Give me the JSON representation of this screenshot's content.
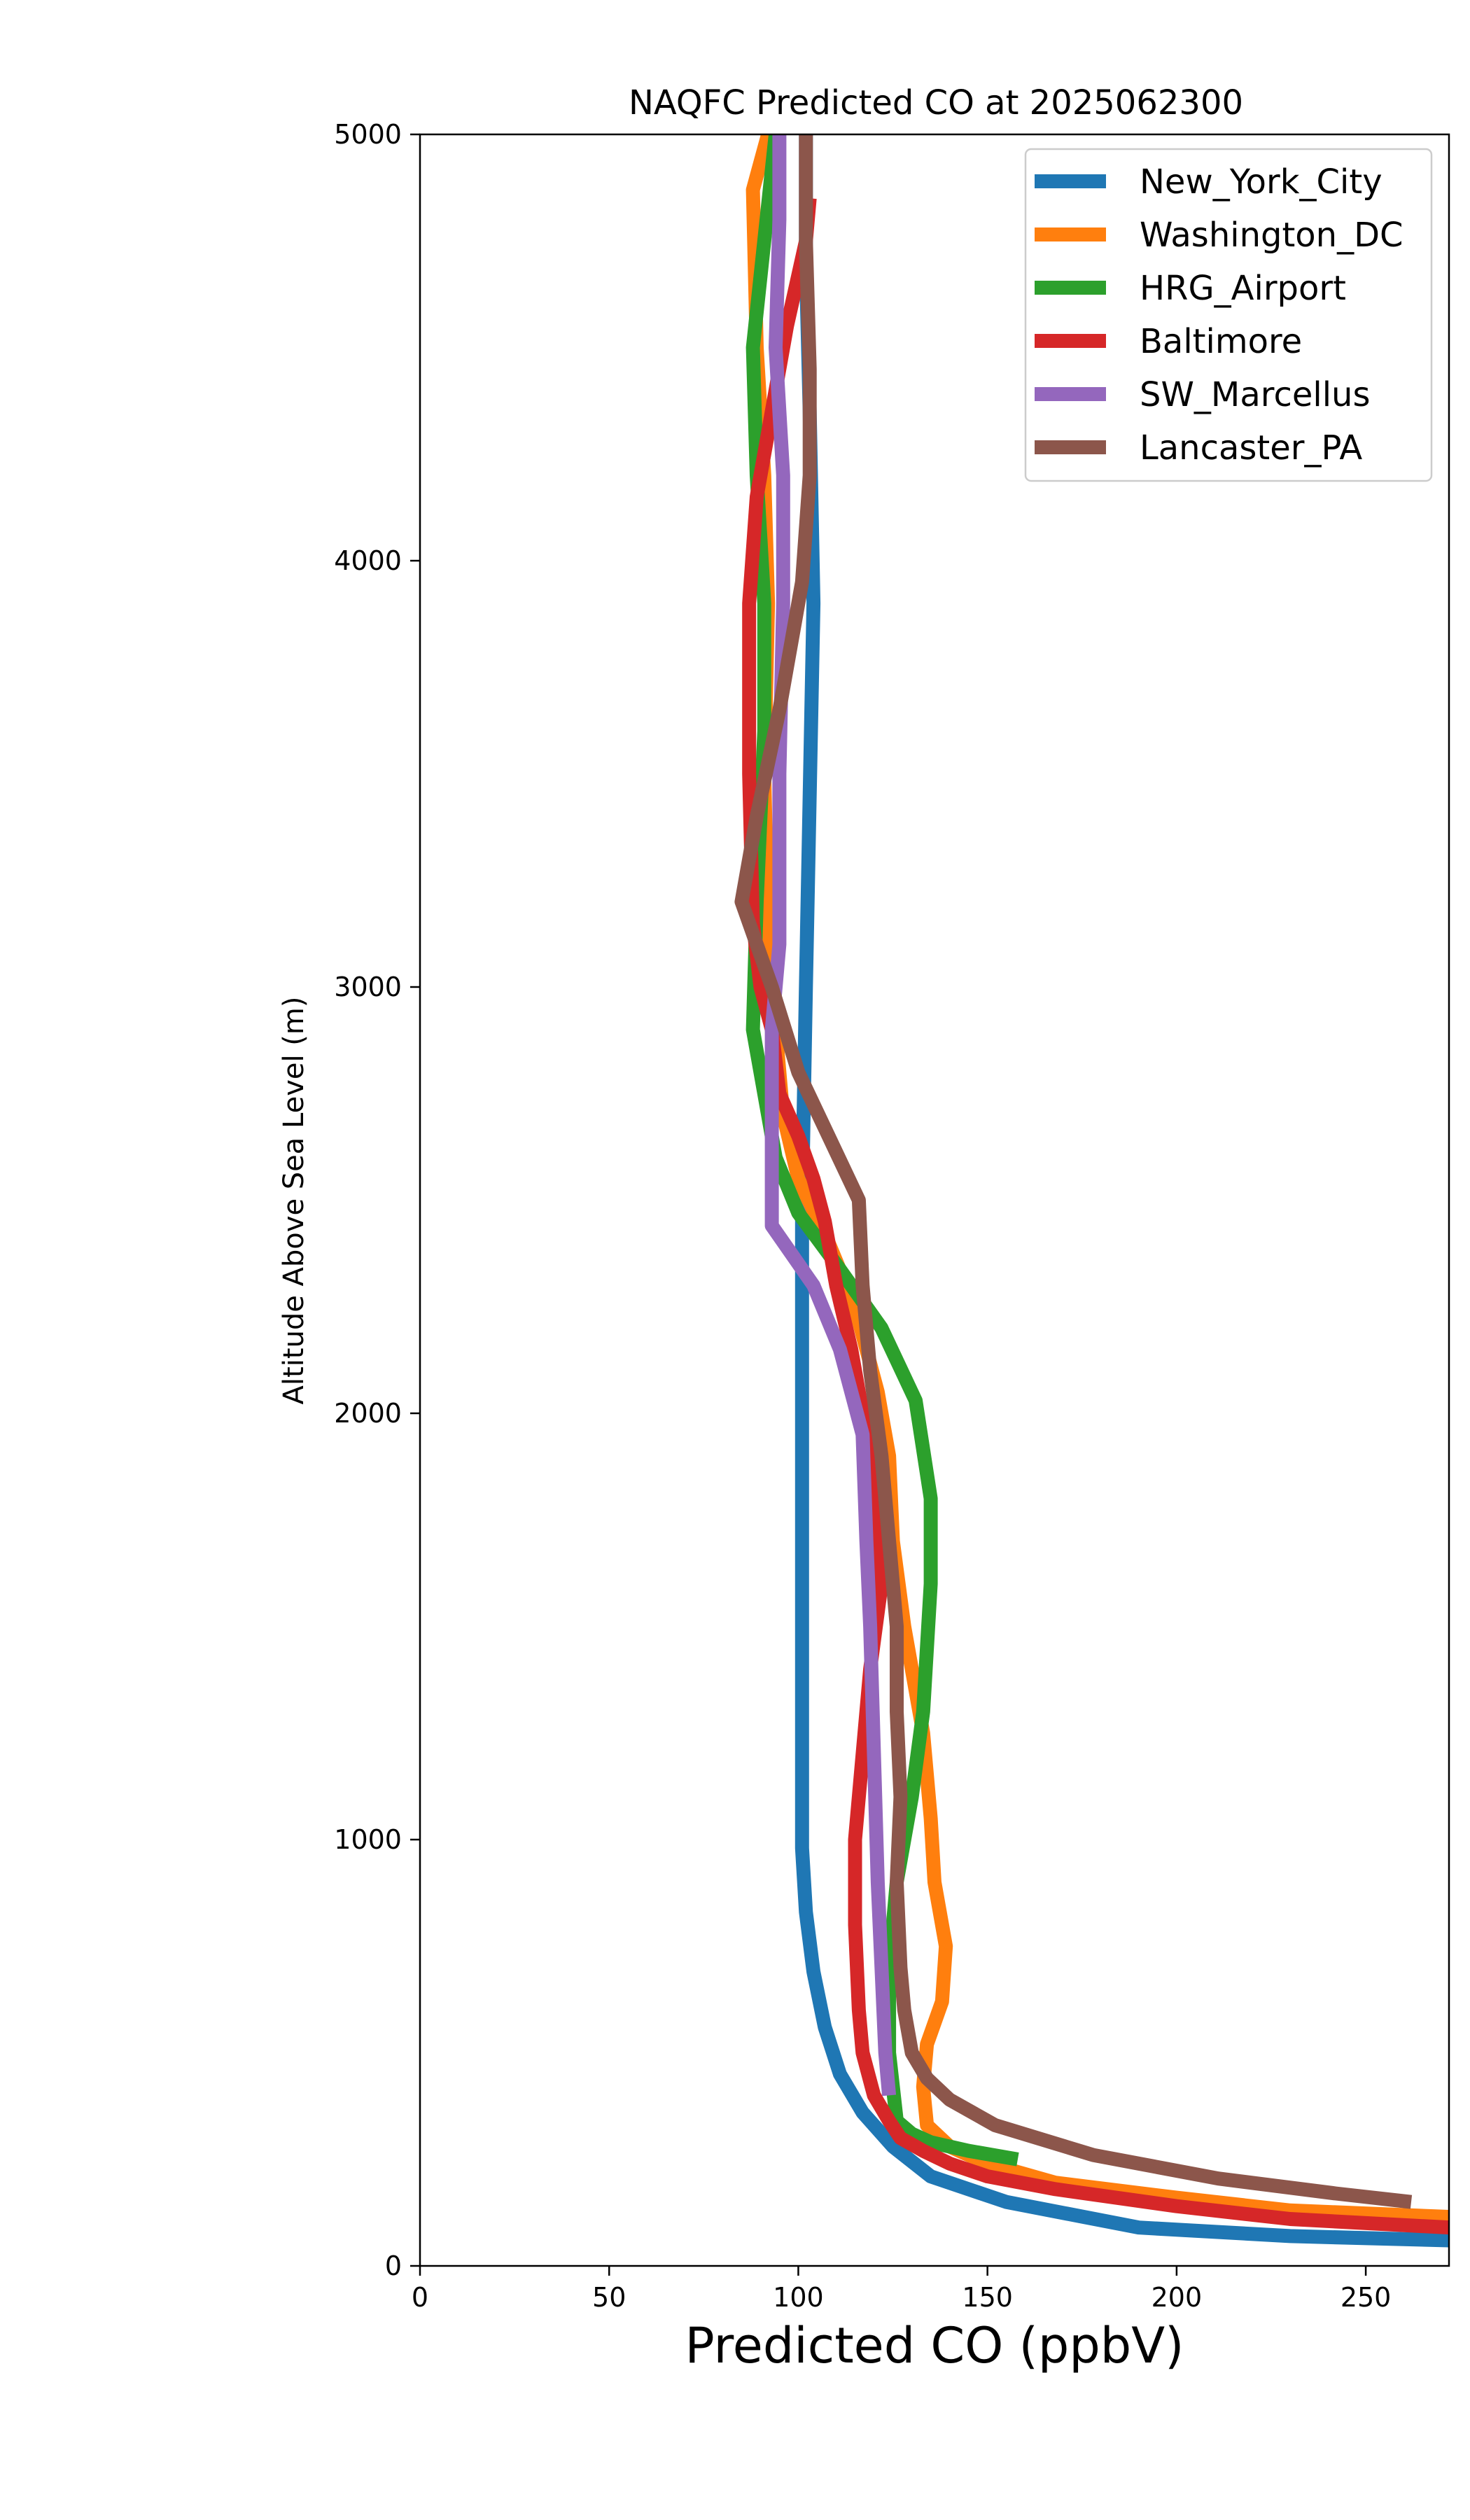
{
  "chart_data": {
    "type": "line",
    "title": "NAQFC Predicted CO at 2025062300",
    "xlabel": "Predicted CO (ppbV)",
    "ylabel": "Altitude Above Sea Level (m)",
    "xlim": [
      0,
      272
    ],
    "ylim": [
      0,
      5000
    ],
    "xticks": [
      "0",
      "50",
      "100",
      "150",
      "200",
      "250"
    ],
    "yticks": [
      "0",
      "1000",
      "2000",
      "3000",
      "4000",
      "5000"
    ],
    "grid": false,
    "legend_position": "top-right",
    "series": [
      {
        "name": "New_York_City",
        "color": "#1f77b4",
        "points": [
          [
            272,
            60
          ],
          [
            230,
            70
          ],
          [
            190,
            90
          ],
          [
            155,
            150
          ],
          [
            135,
            210
          ],
          [
            125,
            280
          ],
          [
            117,
            360
          ],
          [
            111,
            450
          ],
          [
            107,
            560
          ],
          [
            104,
            690
          ],
          [
            102,
            830
          ],
          [
            101,
            980
          ],
          [
            101,
            1150
          ],
          [
            101,
            1500
          ],
          [
            101,
            2000
          ],
          [
            101,
            2500
          ],
          [
            102,
            3000
          ],
          [
            103,
            3450
          ],
          [
            104,
            3900
          ],
          [
            103,
            4350
          ],
          [
            102,
            4700
          ],
          [
            102,
            5000
          ]
        ]
      },
      {
        "name": "Washington_DC",
        "color": "#ff7f0e",
        "points": [
          [
            272,
            115
          ],
          [
            230,
            130
          ],
          [
            200,
            160
          ],
          [
            168,
            195
          ],
          [
            150,
            240
          ],
          [
            140,
            280
          ],
          [
            134,
            330
          ],
          [
            133,
            420
          ],
          [
            134,
            520
          ],
          [
            138,
            620
          ],
          [
            139,
            750
          ],
          [
            136,
            900
          ],
          [
            135,
            1050
          ],
          [
            133,
            1250
          ],
          [
            128,
            1500
          ],
          [
            125,
            1700
          ],
          [
            124,
            1900
          ],
          [
            121,
            2050
          ],
          [
            115,
            2250
          ],
          [
            108,
            2400
          ],
          [
            100,
            2550
          ],
          [
            96,
            2700
          ],
          [
            94,
            2900
          ],
          [
            92,
            3100
          ],
          [
            91,
            3500
          ],
          [
            92,
            3900
          ],
          [
            91,
            4200
          ],
          [
            89,
            4500
          ],
          [
            88,
            4870
          ],
          [
            92,
            5000
          ]
        ]
      },
      {
        "name": "HRG_Airport",
        "color": "#2ca02c",
        "points": [
          [
            158,
            250
          ],
          [
            145,
            270
          ],
          [
            135,
            290
          ],
          [
            130,
            310
          ],
          [
            126,
            340
          ],
          [
            124,
            500
          ],
          [
            124,
            700
          ],
          [
            126,
            900
          ],
          [
            130,
            1100
          ],
          [
            133,
            1300
          ],
          [
            135,
            1600
          ],
          [
            135,
            1800
          ],
          [
            131,
            2030
          ],
          [
            122,
            2200
          ],
          [
            110,
            2350
          ],
          [
            100,
            2470
          ],
          [
            94,
            2600
          ],
          [
            88,
            2900
          ],
          [
            89,
            3200
          ],
          [
            91,
            3600
          ],
          [
            91,
            3900
          ],
          [
            89,
            4200
          ],
          [
            88,
            4500
          ],
          [
            94,
            5000
          ]
        ]
      },
      {
        "name": "Baltimore",
        "color": "#d62728",
        "points": [
          [
            272,
            90
          ],
          [
            230,
            110
          ],
          [
            200,
            140
          ],
          [
            168,
            180
          ],
          [
            150,
            210
          ],
          [
            140,
            240
          ],
          [
            133,
            270
          ],
          [
            127,
            300
          ],
          [
            124,
            340
          ],
          [
            120,
            400
          ],
          [
            117,
            500
          ],
          [
            116,
            600
          ],
          [
            115,
            800
          ],
          [
            115,
            1000
          ],
          [
            117,
            1200
          ],
          [
            119,
            1400
          ],
          [
            122,
            1600
          ],
          [
            120,
            1800
          ],
          [
            117,
            2000
          ],
          [
            114,
            2150
          ],
          [
            110,
            2300
          ],
          [
            107,
            2450
          ],
          [
            104,
            2550
          ],
          [
            100,
            2650
          ],
          [
            95,
            2750
          ],
          [
            93,
            2900
          ],
          [
            90,
            3000
          ],
          [
            88,
            3150
          ],
          [
            87,
            3500
          ],
          [
            87,
            3900
          ],
          [
            89,
            4150
          ],
          [
            93,
            4350
          ],
          [
            97,
            4550
          ],
          [
            102,
            4750
          ],
          [
            103,
            4850
          ]
        ]
      },
      {
        "name": "SW_Marcellus",
        "color": "#9467bd",
        "points": [
          [
            124,
            400
          ],
          [
            123,
            500
          ],
          [
            122,
            700
          ],
          [
            121,
            900
          ],
          [
            120,
            1200
          ],
          [
            119,
            1500
          ],
          [
            118,
            1700
          ],
          [
            117,
            1950
          ],
          [
            111,
            2150
          ],
          [
            104,
            2300
          ],
          [
            93,
            2440
          ],
          [
            93,
            2700
          ],
          [
            93,
            2900
          ],
          [
            95,
            3100
          ],
          [
            95,
            3500
          ],
          [
            96,
            3900
          ],
          [
            96,
            4200
          ],
          [
            94,
            4500
          ],
          [
            95,
            4800
          ],
          [
            95,
            5000
          ]
        ]
      },
      {
        "name": "Lancaster_PA",
        "color": "#8c564b",
        "points": [
          [
            262,
            150
          ],
          [
            242,
            170
          ],
          [
            211,
            205
          ],
          [
            178,
            260
          ],
          [
            152,
            330
          ],
          [
            140,
            390
          ],
          [
            134,
            440
          ],
          [
            130,
            500
          ],
          [
            128,
            600
          ],
          [
            127,
            700
          ],
          [
            126,
            900
          ],
          [
            127,
            1100
          ],
          [
            126,
            1300
          ],
          [
            126,
            1500
          ],
          [
            124,
            1700
          ],
          [
            122,
            1900
          ],
          [
            119,
            2100
          ],
          [
            117,
            2300
          ],
          [
            116,
            2500
          ],
          [
            108,
            2650
          ],
          [
            100,
            2800
          ],
          [
            93,
            3000
          ],
          [
            85,
            3200
          ],
          [
            89,
            3400
          ],
          [
            95,
            3650
          ],
          [
            101,
            3950
          ],
          [
            103,
            4200
          ],
          [
            103,
            4450
          ],
          [
            102,
            4750
          ],
          [
            102,
            5000
          ]
        ]
      }
    ]
  }
}
